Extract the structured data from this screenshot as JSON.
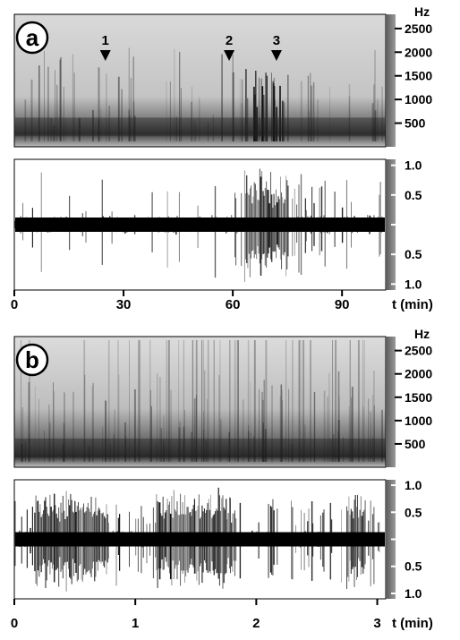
{
  "panels": [
    {
      "label": "a",
      "spectrogram": {
        "unit": "Hz",
        "ticks": [
          {
            "label": "2500",
            "value": 2500
          },
          {
            "label": "2000",
            "value": 2000
          },
          {
            "label": "1500",
            "value": 1500
          },
          {
            "label": "1000",
            "value": 1000
          },
          {
            "label": "500",
            "value": 500
          }
        ],
        "range": [
          0,
          2800
        ]
      },
      "waveform": {
        "ticks": [
          {
            "label": "1.0",
            "value": 1.0
          },
          {
            "label": "0.5",
            "value": 0.5
          },
          {
            "label": "0.5",
            "value": -0.5
          },
          {
            "label": "1.0",
            "value": -1.0
          }
        ],
        "range": [
          -1.1,
          1.1
        ]
      },
      "markers": [
        {
          "label": "1",
          "t": 25
        },
        {
          "label": "2",
          "t": 59
        },
        {
          "label": "3",
          "t": 72
        }
      ],
      "time_axis": {
        "unit": "t (min)",
        "range": [
          0,
          102
        ],
        "ticks": [
          {
            "label": "0",
            "value": 0
          },
          {
            "label": "30",
            "value": 30
          },
          {
            "label": "60",
            "value": 60
          },
          {
            "label": "90",
            "value": 90
          }
        ]
      }
    },
    {
      "label": "b",
      "spectrogram": {
        "unit": "Hz",
        "ticks": [
          {
            "label": "2500",
            "value": 2500
          },
          {
            "label": "2000",
            "value": 2000
          },
          {
            "label": "1500",
            "value": 1500
          },
          {
            "label": "1000",
            "value": 1000
          },
          {
            "label": "500",
            "value": 500
          }
        ],
        "range": [
          0,
          2800
        ]
      },
      "waveform": {
        "ticks": [
          {
            "label": "1.0",
            "value": 1.0
          },
          {
            "label": "0.5",
            "value": 0.5
          },
          {
            "label": "0.5",
            "value": -0.5
          },
          {
            "label": "1.0",
            "value": -1.0
          }
        ],
        "range": [
          -1.1,
          1.1
        ]
      },
      "markers": [],
      "time_axis": {
        "unit": "t (min)",
        "range": [
          0,
          3.07
        ],
        "ticks": [
          {
            "label": "0",
            "value": 0
          },
          {
            "label": "1",
            "value": 1
          },
          {
            "label": "2",
            "value": 2
          },
          {
            "label": "3",
            "value": 3
          }
        ]
      }
    }
  ]
}
